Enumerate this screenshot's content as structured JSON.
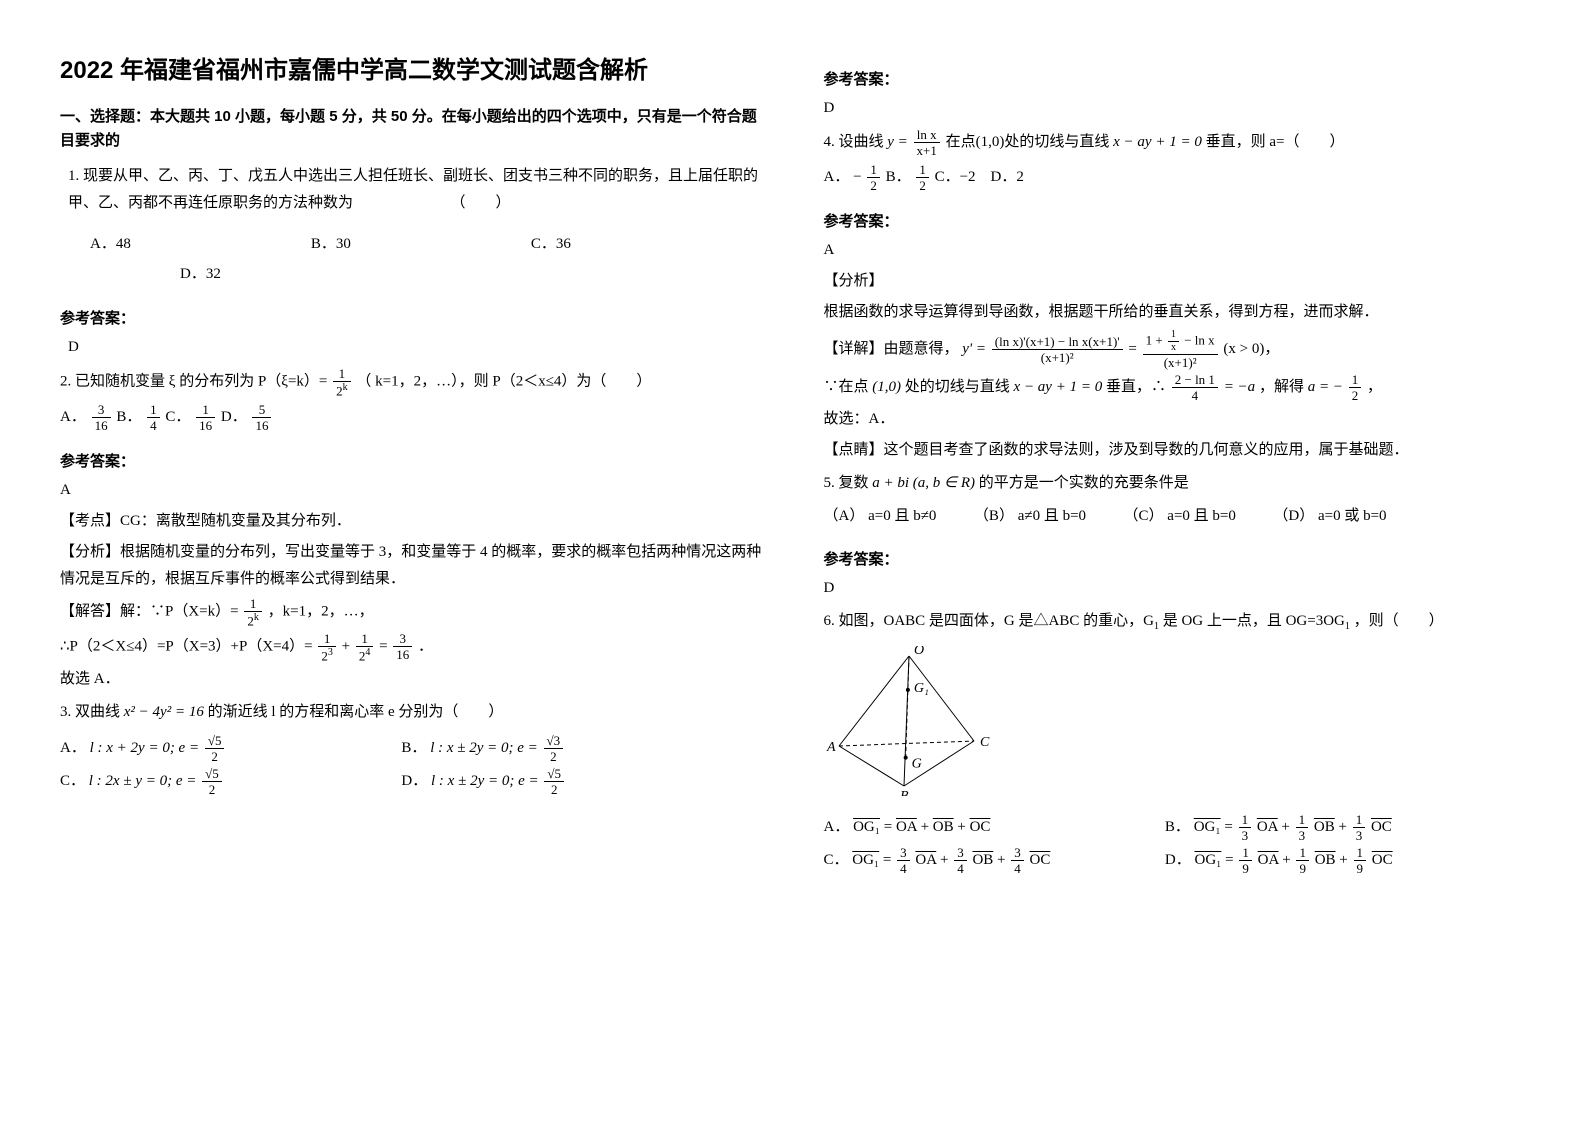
{
  "title": "2022 年福建省福州市嘉儒中学高二数学文测试题含解析",
  "section1_header": "一、选择题：本大题共 10 小题，每小题 5 分，共 50 分。在每小题给出的四个选项中，只有是一个符合题目要求的",
  "q1_text": "1. 现要从甲、乙、丙、丁、戊五人中选出三人担任班长、副班长、团支书三种不同的职务，且上届任职的甲、乙、丙都不再连任原职务的方法种数为　　　　　　　（　　）",
  "q1_choices": "　　A．48　　　　　　　　　　　　B．30　　　　　　　　　　　　C．36\n　　　　　　　　D．32",
  "q1_answer_label": "参考答案：",
  "q1_answer": "D",
  "q2_prefix": "2. 已知随机变量 ξ 的分布列为 P（ξ=k）= ",
  "q2_mid": "（ k=1，2，…），则 P（2＜x≤4）为（　　）",
  "q2_frac_num": "1",
  "q2_frac_den": "2",
  "q2_frac_exp": "k",
  "q2_opts_prefix": "A．",
  "q2_a_num": "3",
  "q2_a_den": "16",
  "q2_b_label": " B．",
  "q2_b_num": "1",
  "q2_b_den": "4",
  "q2_c_label": " C．",
  "q2_c_num": "1",
  "q2_c_den": "16",
  "q2_d_label": " D．",
  "q2_d_num": "5",
  "q2_d_den": "16",
  "q2_answer_label": "参考答案：",
  "q2_answer": "A",
  "q2_point": "【考点】CG：离散型随机变量及其分布列．",
  "q2_analysis": "【分析】根据随机变量的分布列，写出变量等于 3，和变量等于 4 的概率，要求的概率包括两种情况这两种情况是互斥的，根据互斥事件的概率公式得到结果．",
  "q2_solve_1a": "【解答】解：∵P（X=k）= ",
  "q2_solve_1b": "，k=1，2，…，",
  "q2_solve_2a": "∴P（2＜X≤4）=P（X=3）+P（X=4）= ",
  "q2_solve_2b": "．",
  "q2_s2_n1": "1",
  "q2_s2_d1": "2",
  "q2_s2_e1": "3",
  "q2_plus": "+",
  "q2_s2_n2": "1",
  "q2_s2_d2": "2",
  "q2_s2_e2": "4",
  "q2_eq": "=",
  "q2_s2_n3": "3",
  "q2_s2_d3": "16",
  "q2_solve_3": "故选 A．",
  "q3_prefix": "3. 双曲线 ",
  "q3_eq": "x² − 4y² = 16",
  "q3_suffix": " 的渐近线 l 的方程和离心率 e 分别为（　　）",
  "q3_a_label": "A．",
  "q3_a_l": "l : x + 2y = 0; e = ",
  "q3_a_num": "√5",
  "q3_a_den": "2",
  "q3_b_label": "B．",
  "q3_b_l": "l : x ± 2y = 0; e = ",
  "q3_b_num": "√3",
  "q3_b_den": "2",
  "q3_c_label": "C．",
  "q3_c_l": "l : 2x ± y = 0; e = ",
  "q3_c_num": "√5",
  "q3_c_den": "2",
  "q3_d_label": "D．",
  "q3_d_l": "l : x ± 2y = 0; e = ",
  "q3_d_num": "√5",
  "q3_d_den": "2",
  "q3_answer_label": "参考答案：",
  "q3_answer": "D",
  "q4_prefix": "4. 设曲线 ",
  "q4_y": "y = ",
  "q4_y_num": "ln x",
  "q4_y_den": "x+1",
  "q4_mid1": " 在点(1,0)处的切线与直线 ",
  "q4_line": "x − ay + 1 = 0",
  "q4_mid2": " 垂直，则 a=（　　）",
  "q4_a_label": "A．",
  "q4_a_sign": "−",
  "q4_a_num": "1",
  "q4_a_den": "2",
  "q4_b_label": " B．",
  "q4_b_num": "1",
  "q4_b_den": "2",
  "q4_c_label": " C．−2　D．2",
  "q4_answer_label": "参考答案：",
  "q4_answer": "A",
  "q4_ana_head": "【分析】",
  "q4_ana_body": "根据函数的求导运算得到导函数，根据题干所给的垂直关系，得到方程，进而求解．",
  "q4_det_head": "【详解】由题意得，",
  "q4_det_eq_lhs": "y' = ",
  "q4_det_num1": "(ln x)'(x+1) − ln x(x+1)'",
  "q4_det_den1": "(x+1)²",
  "q4_det_eq_eq": " = ",
  "q4_det_num2_a": "1 + ",
  "q4_det_num2_n": "1",
  "q4_det_num2_d": "x",
  "q4_det_num2_b": " − ln x",
  "q4_det_den2": "(x+1)²",
  "q4_det_tail": " (x > 0)",
  "q4_det_comma": "，",
  "q4_l2a": "∵在点",
  "q4_l2pt": "(1,0)",
  "q4_l2b": "处的切线与直线 ",
  "q4_l2line": "x − ay + 1 = 0",
  "q4_l2c": " 垂直，∴ ",
  "q4_l2_num": "2 − ln 1",
  "q4_l2_den": "4",
  "q4_l2d": " = −a",
  "q4_l2e": "，解得 ",
  "q4_l2_a_lhs": "a = −",
  "q4_l2_a_num": "1",
  "q4_l2_a_den": "2",
  "q4_l2f": "，",
  "q4_l3": "故选：A．",
  "q4_point": "【点睛】这个题目考查了函数的求导法则，涉及到导数的几何意义的应用，属于基础题．",
  "q5_prefix": "5. 复数 ",
  "q5_expr": "a + bi (a, b ∈ R)",
  "q5_suffix": " 的平方是一个实数的充要条件是",
  "q5_opts": "（A） a=0 且 b≠0　　　（B） a≠0 且 b=0　　　（C） a=0 且 b=0　　　（D） a=0 或 b=0",
  "q5_answer_label": "参考答案：",
  "q5_answer": "D",
  "q6_text_a": "6. 如图，OABC 是四面体，G 是△ABC 的重心，G",
  "q6_text_sub": "1",
  "q6_text_b": "是 OG 上一点，且 OG=3OG",
  "q6_text_c": "，则（　　）",
  "q6_a_label": "A．",
  "q6_a_expr_l": "OG₁",
  "q6_a_eq": " = ",
  "q6_a_expr_r": "OA + OB + OC",
  "q6_b_label": "B．",
  "q6_b_expr_l": "OG₁",
  "q6_b_eq": " = ",
  "q6_b_n": "1",
  "q6_b_d": "3",
  "q6_c_label": "C．",
  "q6_c_expr_l": "OG₁",
  "q6_c_eq": " = ",
  "q6_c_n": "3",
  "q6_c_d": "4",
  "q6_d_label": "D．",
  "q6_d_expr_l": "OG₁",
  "q6_d_eq": " = ",
  "q6_d_n": "1",
  "q6_d_d": "9",
  "q6_OA": "OA",
  "q6_OB": "OB",
  "q6_OC": "OC",
  "q6_plus": " + ",
  "tetra_labels": {
    "O": "O",
    "A": "A",
    "B": "B",
    "C": "C",
    "G": "G",
    "G1": "G₁"
  },
  "tetra_style": {
    "stroke": "#000000",
    "fill": "none",
    "dash": "4,3",
    "font_size": "14"
  }
}
